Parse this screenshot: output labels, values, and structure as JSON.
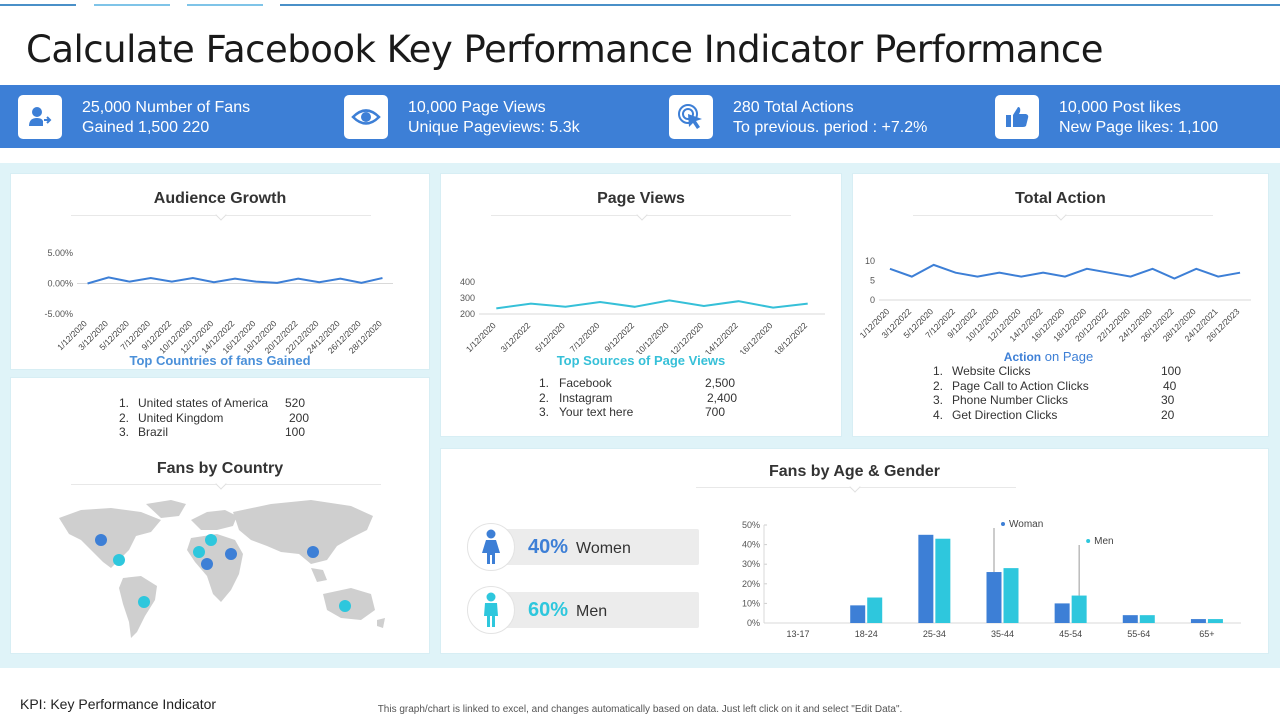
{
  "page": {
    "title_main": "Calculate Facebook Key Performance Indicator",
    "title_light": "Performance"
  },
  "kpis": [
    {
      "icon": "user-arrow-icon",
      "line1": "25,000 Number of Fans",
      "line2": "Gained 1,500 220"
    },
    {
      "icon": "eye-icon",
      "line1": "10,000 Page Views",
      "line2": "Unique Pageviews: 5.3k"
    },
    {
      "icon": "click-pointer-icon",
      "line1": "280 Total Actions",
      "line2": "To previous.  period : +7.2%"
    },
    {
      "icon": "thumbs-up-icon",
      "line1": "10,000 Post likes",
      "line2": "New Page likes: 1,100"
    }
  ],
  "audience_growth": {
    "title": "Audience Growth",
    "subtitle": "Top Countries of fans Gained",
    "list": [
      {
        "num": "1.",
        "name": "United states of America",
        "value": "520"
      },
      {
        "num": "2.",
        "name": "United Kingdom",
        "value": "200"
      },
      {
        "num": "3.",
        "name": "Brazil",
        "value": "100"
      }
    ]
  },
  "page_views": {
    "title": "Page Views",
    "subtitle": "Top Sources of Page Views",
    "list": [
      {
        "num": "1.",
        "name": "Facebook",
        "value": "2,500"
      },
      {
        "num": "2.",
        "name": "Instagram",
        "value": "2,400"
      },
      {
        "num": "3.",
        "name": "Your text here",
        "value": "700"
      }
    ]
  },
  "total_action": {
    "title": "Total Action",
    "subtitle_a": "Action",
    "subtitle_b": "on Page",
    "list": [
      {
        "num": "1.",
        "name": "Website Clicks",
        "value": "100"
      },
      {
        "num": "2.",
        "name": "Page Call to Action Clicks",
        "value": "40"
      },
      {
        "num": "3.",
        "name": "Phone Number Clicks",
        "value": "30"
      },
      {
        "num": "4.",
        "name": "Get Direction Clicks",
        "value": "20"
      }
    ]
  },
  "fans_by_country": {
    "title": "Fans by Country"
  },
  "fans_age_gender": {
    "title": "Fans by Age & Gender",
    "women_pct": "40%",
    "women_label": "Women",
    "men_pct": "60%",
    "men_label": "Men"
  },
  "colors": {
    "accent_blue": "#3d7fd6",
    "accent_cyan": "#2ec7dd",
    "subhead_blue": "#4a90d9",
    "subhead_cyan": "#36c0d8"
  },
  "chart_data": [
    {
      "type": "line",
      "id": "audience_growth_chart",
      "x": [
        "1/12/2020",
        "3/12/2020",
        "5/12/2020",
        "7/12/2020",
        "9/12/2022",
        "10/12/2020",
        "12/12/2020",
        "14/12/2022",
        "16/12/2020",
        "18/12/2020",
        "20/12/2022",
        "22/12/2020",
        "24/12/2020",
        "26/12/2020",
        "28/12/2020"
      ],
      "series": [
        {
          "values": [
            0.0,
            1.0,
            0.3,
            0.9,
            0.3,
            0.9,
            0.2,
            0.8,
            0.3,
            0.1,
            0.8,
            0.2,
            0.8,
            0.1,
            0.9
          ]
        }
      ],
      "ytick_labels": [
        "5.00%",
        "0.00%",
        "-5.00%"
      ],
      "ylim": [
        -5,
        5
      ]
    },
    {
      "type": "line",
      "id": "page_views_chart",
      "x": [
        "1/12/2020",
        "3/12/2022",
        "5/12/2020",
        "7/12/2020",
        "9/12/2022",
        "10/12/2020",
        "12/12/2020",
        "14/12/2022",
        "16/12/2020",
        "18/12/2022"
      ],
      "series": [
        {
          "values": [
            235,
            265,
            245,
            275,
            245,
            285,
            250,
            280,
            240,
            265
          ]
        }
      ],
      "ytick_labels": [
        "400",
        "300",
        "200"
      ],
      "ylim": [
        200,
        400
      ]
    },
    {
      "type": "line",
      "id": "total_action_chart",
      "x": [
        "1/12/2020",
        "3/12/2022",
        "5/12/2020",
        "7/12/2022",
        "9/12/2022",
        "10/12/2020",
        "12/12/2020",
        "14/12/2022",
        "16/12/2020",
        "18/12/2020",
        "20/12/2022",
        "22/12/2020",
        "24/12/2020",
        "26/12/2022",
        "28/12/2020",
        "24/12/2021",
        "26/12/2023"
      ],
      "series": [
        {
          "values": [
            8,
            6,
            9,
            7,
            6,
            7,
            6,
            7,
            6,
            8,
            7,
            6,
            8,
            5.5,
            8,
            6,
            7
          ]
        }
      ],
      "ytick_labels": [
        "10",
        "5",
        "0"
      ],
      "ylim": [
        0,
        10
      ]
    },
    {
      "type": "bar",
      "id": "fans_age_gender_chart",
      "categories": [
        "13-17",
        "18-24",
        "25-34",
        "35-44",
        "45-54",
        "55-64",
        "65+"
      ],
      "series": [
        {
          "name": "Woman",
          "values": [
            0,
            9,
            45,
            26,
            10,
            4,
            2
          ]
        },
        {
          "name": "Men",
          "values": [
            0,
            13,
            43,
            28,
            14,
            4,
            2
          ]
        }
      ],
      "ytick_labels": [
        "50%",
        "40%",
        "30%",
        "20%",
        "10%",
        "0%"
      ],
      "ylim": [
        0,
        50
      ]
    }
  ]
}
